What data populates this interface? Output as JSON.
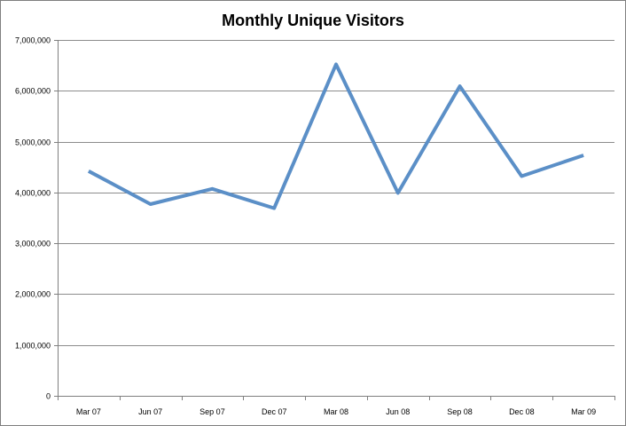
{
  "chart_data": {
    "type": "line",
    "title": "Monthly Unique Visitors",
    "xlabel": "",
    "ylabel": "",
    "categories": [
      "Mar 07",
      "Jun 07",
      "Sep 07",
      "Dec 07",
      "Mar 08",
      "Jun 08",
      "Sep 08",
      "Dec 08",
      "Mar 09"
    ],
    "series": [
      {
        "values": [
          4420000,
          3770000,
          4070000,
          3690000,
          6520000,
          3990000,
          6090000,
          4320000,
          4730000
        ]
      }
    ],
    "ylim": [
      0,
      7000000
    ],
    "yticks": [
      0,
      1000000,
      2000000,
      3000000,
      4000000,
      5000000,
      6000000,
      7000000
    ],
    "ytick_labels": [
      "0",
      "1,000,000",
      "2,000,000",
      "3,000,000",
      "4,000,000",
      "5,000,000",
      "6,000,000",
      "7,000,000"
    ],
    "grid": true,
    "legend": "none",
    "line_color": "#5b8fc7"
  }
}
